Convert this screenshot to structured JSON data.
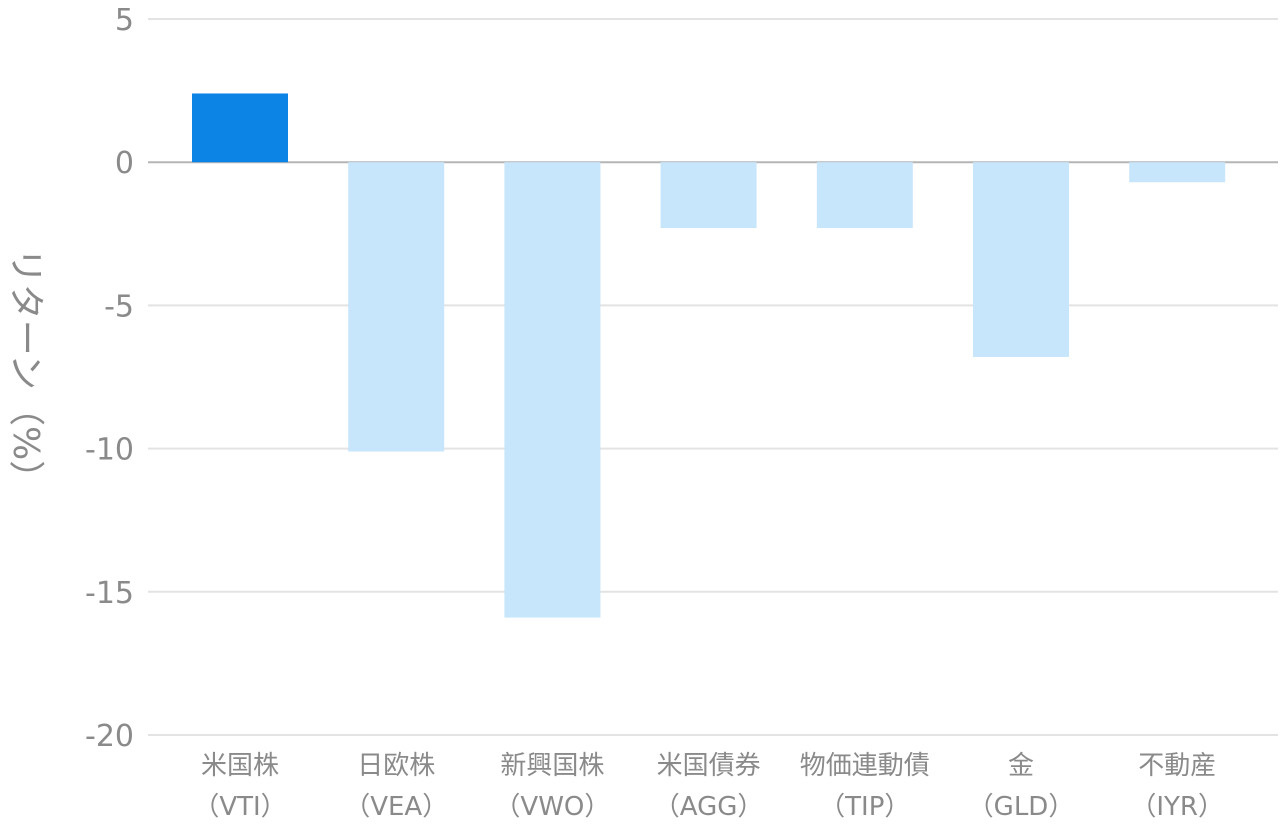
{
  "chart_data": {
    "type": "bar",
    "title": "",
    "xlabel": "",
    "ylabel": "リターン（%）",
    "ylim": [
      -20,
      5
    ],
    "yticks": [
      5,
      0,
      -5,
      -10,
      -15,
      -20
    ],
    "grid": true,
    "categories": [
      {
        "name": "米国株",
        "ticker": "（VTI）"
      },
      {
        "name": "日欧株",
        "ticker": "（VEA）"
      },
      {
        "name": "新興国株",
        "ticker": "（VWO）"
      },
      {
        "name": "米国債券",
        "ticker": "（AGG）"
      },
      {
        "name": "物価連動債",
        "ticker": "（TIP）"
      },
      {
        "name": "金",
        "ticker": "（GLD）"
      },
      {
        "name": "不動産",
        "ticker": "（IYR）"
      }
    ],
    "values": [
      2.4,
      -10.1,
      -15.9,
      -2.3,
      -2.3,
      -6.8,
      -0.7
    ],
    "colors": {
      "positive": "#0b84e6",
      "negative": "#c7e5fb",
      "grid": "#e3e3e3",
      "zero_line": "#b5b5b5",
      "text": "#8a8a8a"
    }
  }
}
